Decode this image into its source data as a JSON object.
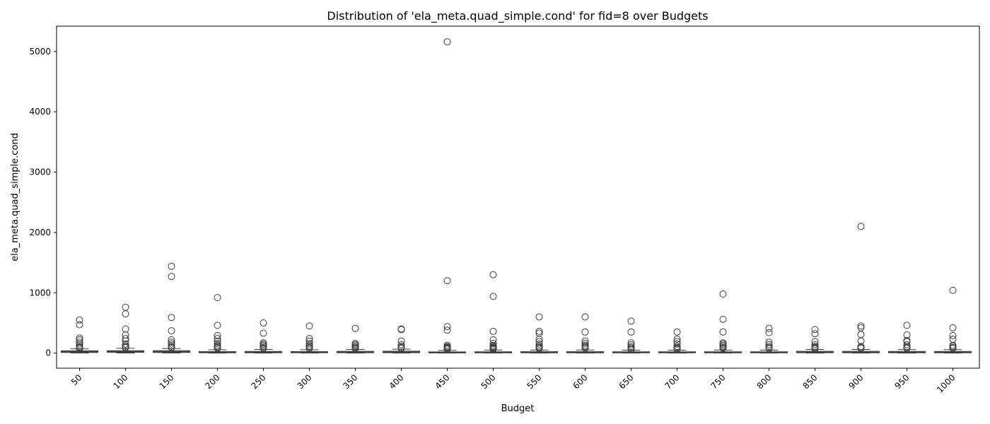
{
  "chart_data": {
    "type": "box",
    "title": "Distribution of 'ela_meta.quad_simple.cond' for fid=8 over Budgets",
    "xlabel": "Budget",
    "ylabel": "ela_meta.quad_simple.cond",
    "ylim": [
      -250,
      5420
    ],
    "yticks": [
      0,
      1000,
      2000,
      3000,
      4000,
      5000
    ],
    "grid": false,
    "legend": "none",
    "categories": [
      "50",
      "100",
      "150",
      "200",
      "250",
      "300",
      "350",
      "400",
      "450",
      "500",
      "550",
      "600",
      "650",
      "700",
      "750",
      "800",
      "850",
      "900",
      "950",
      "1000"
    ],
    "boxes": [
      {
        "category": "50",
        "whislo": 2,
        "q1": 10,
        "med": 22,
        "q3": 38,
        "whishi": 70,
        "fliers": [
          550,
          470,
          250,
          220,
          180,
          150,
          120,
          100,
          90,
          80
        ]
      },
      {
        "category": "100",
        "whislo": 2,
        "q1": 12,
        "med": 25,
        "q3": 40,
        "whishi": 80,
        "fliers": [
          760,
          650,
          400,
          300,
          240,
          200,
          150,
          120,
          100,
          90
        ]
      },
      {
        "category": "150",
        "whislo": 2,
        "q1": 10,
        "med": 22,
        "q3": 40,
        "whishi": 75,
        "fliers": [
          1440,
          1270,
          590,
          370,
          220,
          180,
          150,
          120,
          100,
          90
        ]
      },
      {
        "category": "200",
        "whislo": 1,
        "q1": 5,
        "med": 12,
        "q3": 25,
        "whishi": 55,
        "fliers": [
          920,
          460,
          290,
          240,
          200,
          160,
          130,
          110,
          90,
          80
        ]
      },
      {
        "category": "250",
        "whislo": 1,
        "q1": 5,
        "med": 14,
        "q3": 28,
        "whishi": 60,
        "fliers": [
          500,
          330,
          170,
          150,
          130,
          110,
          90,
          80
        ]
      },
      {
        "category": "300",
        "whislo": 1,
        "q1": 5,
        "med": 12,
        "q3": 25,
        "whishi": 55,
        "fliers": [
          450,
          240,
          200,
          160,
          130,
          110,
          90,
          75
        ]
      },
      {
        "category": "350",
        "whislo": 1,
        "q1": 6,
        "med": 15,
        "q3": 30,
        "whishi": 60,
        "fliers": [
          410,
          160,
          140,
          120,
          100,
          85,
          75
        ]
      },
      {
        "category": "400",
        "whislo": 1,
        "q1": 6,
        "med": 16,
        "q3": 32,
        "whishi": 65,
        "fliers": [
          400,
          390,
          200,
          140,
          110,
          90,
          80
        ]
      },
      {
        "category": "450",
        "whislo": 1,
        "q1": 4,
        "med": 10,
        "q3": 20,
        "whishi": 45,
        "fliers": [
          5160,
          1200,
          440,
          380,
          130,
          110,
          95,
          85,
          75,
          65
        ]
      },
      {
        "category": "500",
        "whislo": 1,
        "q1": 4,
        "med": 10,
        "q3": 22,
        "whishi": 50,
        "fliers": [
          1300,
          940,
          360,
          220,
          160,
          130,
          110,
          95,
          85,
          75,
          65
        ]
      },
      {
        "category": "550",
        "whislo": 1,
        "q1": 4,
        "med": 11,
        "q3": 24,
        "whishi": 50,
        "fliers": [
          600,
          360,
          330,
          230,
          190,
          150,
          120,
          100,
          85,
          75
        ]
      },
      {
        "category": "600",
        "whislo": 1,
        "q1": 4,
        "med": 11,
        "q3": 24,
        "whishi": 52,
        "fliers": [
          600,
          350,
          200,
          160,
          130,
          110,
          95,
          80
        ]
      },
      {
        "category": "650",
        "whislo": 1,
        "q1": 4,
        "med": 10,
        "q3": 22,
        "whishi": 48,
        "fliers": [
          530,
          350,
          170,
          140,
          110,
          90,
          70,
          60
        ]
      },
      {
        "category": "700",
        "whislo": 1,
        "q1": 4,
        "med": 10,
        "q3": 22,
        "whishi": 48,
        "fliers": [
          350,
          230,
          190,
          150,
          110,
          90,
          75,
          65
        ]
      },
      {
        "category": "750",
        "whislo": 1,
        "q1": 4,
        "med": 10,
        "q3": 22,
        "whishi": 50,
        "fliers": [
          980,
          560,
          350,
          170,
          150,
          130,
          110,
          90,
          80
        ]
      },
      {
        "category": "800",
        "whislo": 1,
        "q1": 4,
        "med": 10,
        "q3": 22,
        "whishi": 48,
        "fliers": [
          410,
          340,
          180,
          140,
          110,
          90,
          75
        ]
      },
      {
        "category": "850",
        "whislo": 1,
        "q1": 6,
        "med": 14,
        "q3": 30,
        "whishi": 60,
        "fliers": [
          390,
          320,
          190,
          140,
          110,
          95,
          80,
          70
        ]
      },
      {
        "category": "900",
        "whislo": 1,
        "q1": 5,
        "med": 13,
        "q3": 30,
        "whishi": 60,
        "fliers": [
          2100,
          450,
          420,
          310,
          200,
          110,
          90,
          80
        ]
      },
      {
        "category": "950",
        "whislo": 1,
        "q1": 5,
        "med": 13,
        "q3": 28,
        "whishi": 58,
        "fliers": [
          460,
          300,
          210,
          190,
          140,
          110,
          90,
          80
        ]
      },
      {
        "category": "1000",
        "whislo": 1,
        "q1": 5,
        "med": 12,
        "q3": 28,
        "whishi": 58,
        "fliers": [
          1040,
          420,
          290,
          230,
          130,
          110,
          90,
          80
        ]
      }
    ],
    "colors": {
      "box_fill": "#4c72b0",
      "line": "#3d3d3d",
      "axis": "#000000"
    }
  }
}
